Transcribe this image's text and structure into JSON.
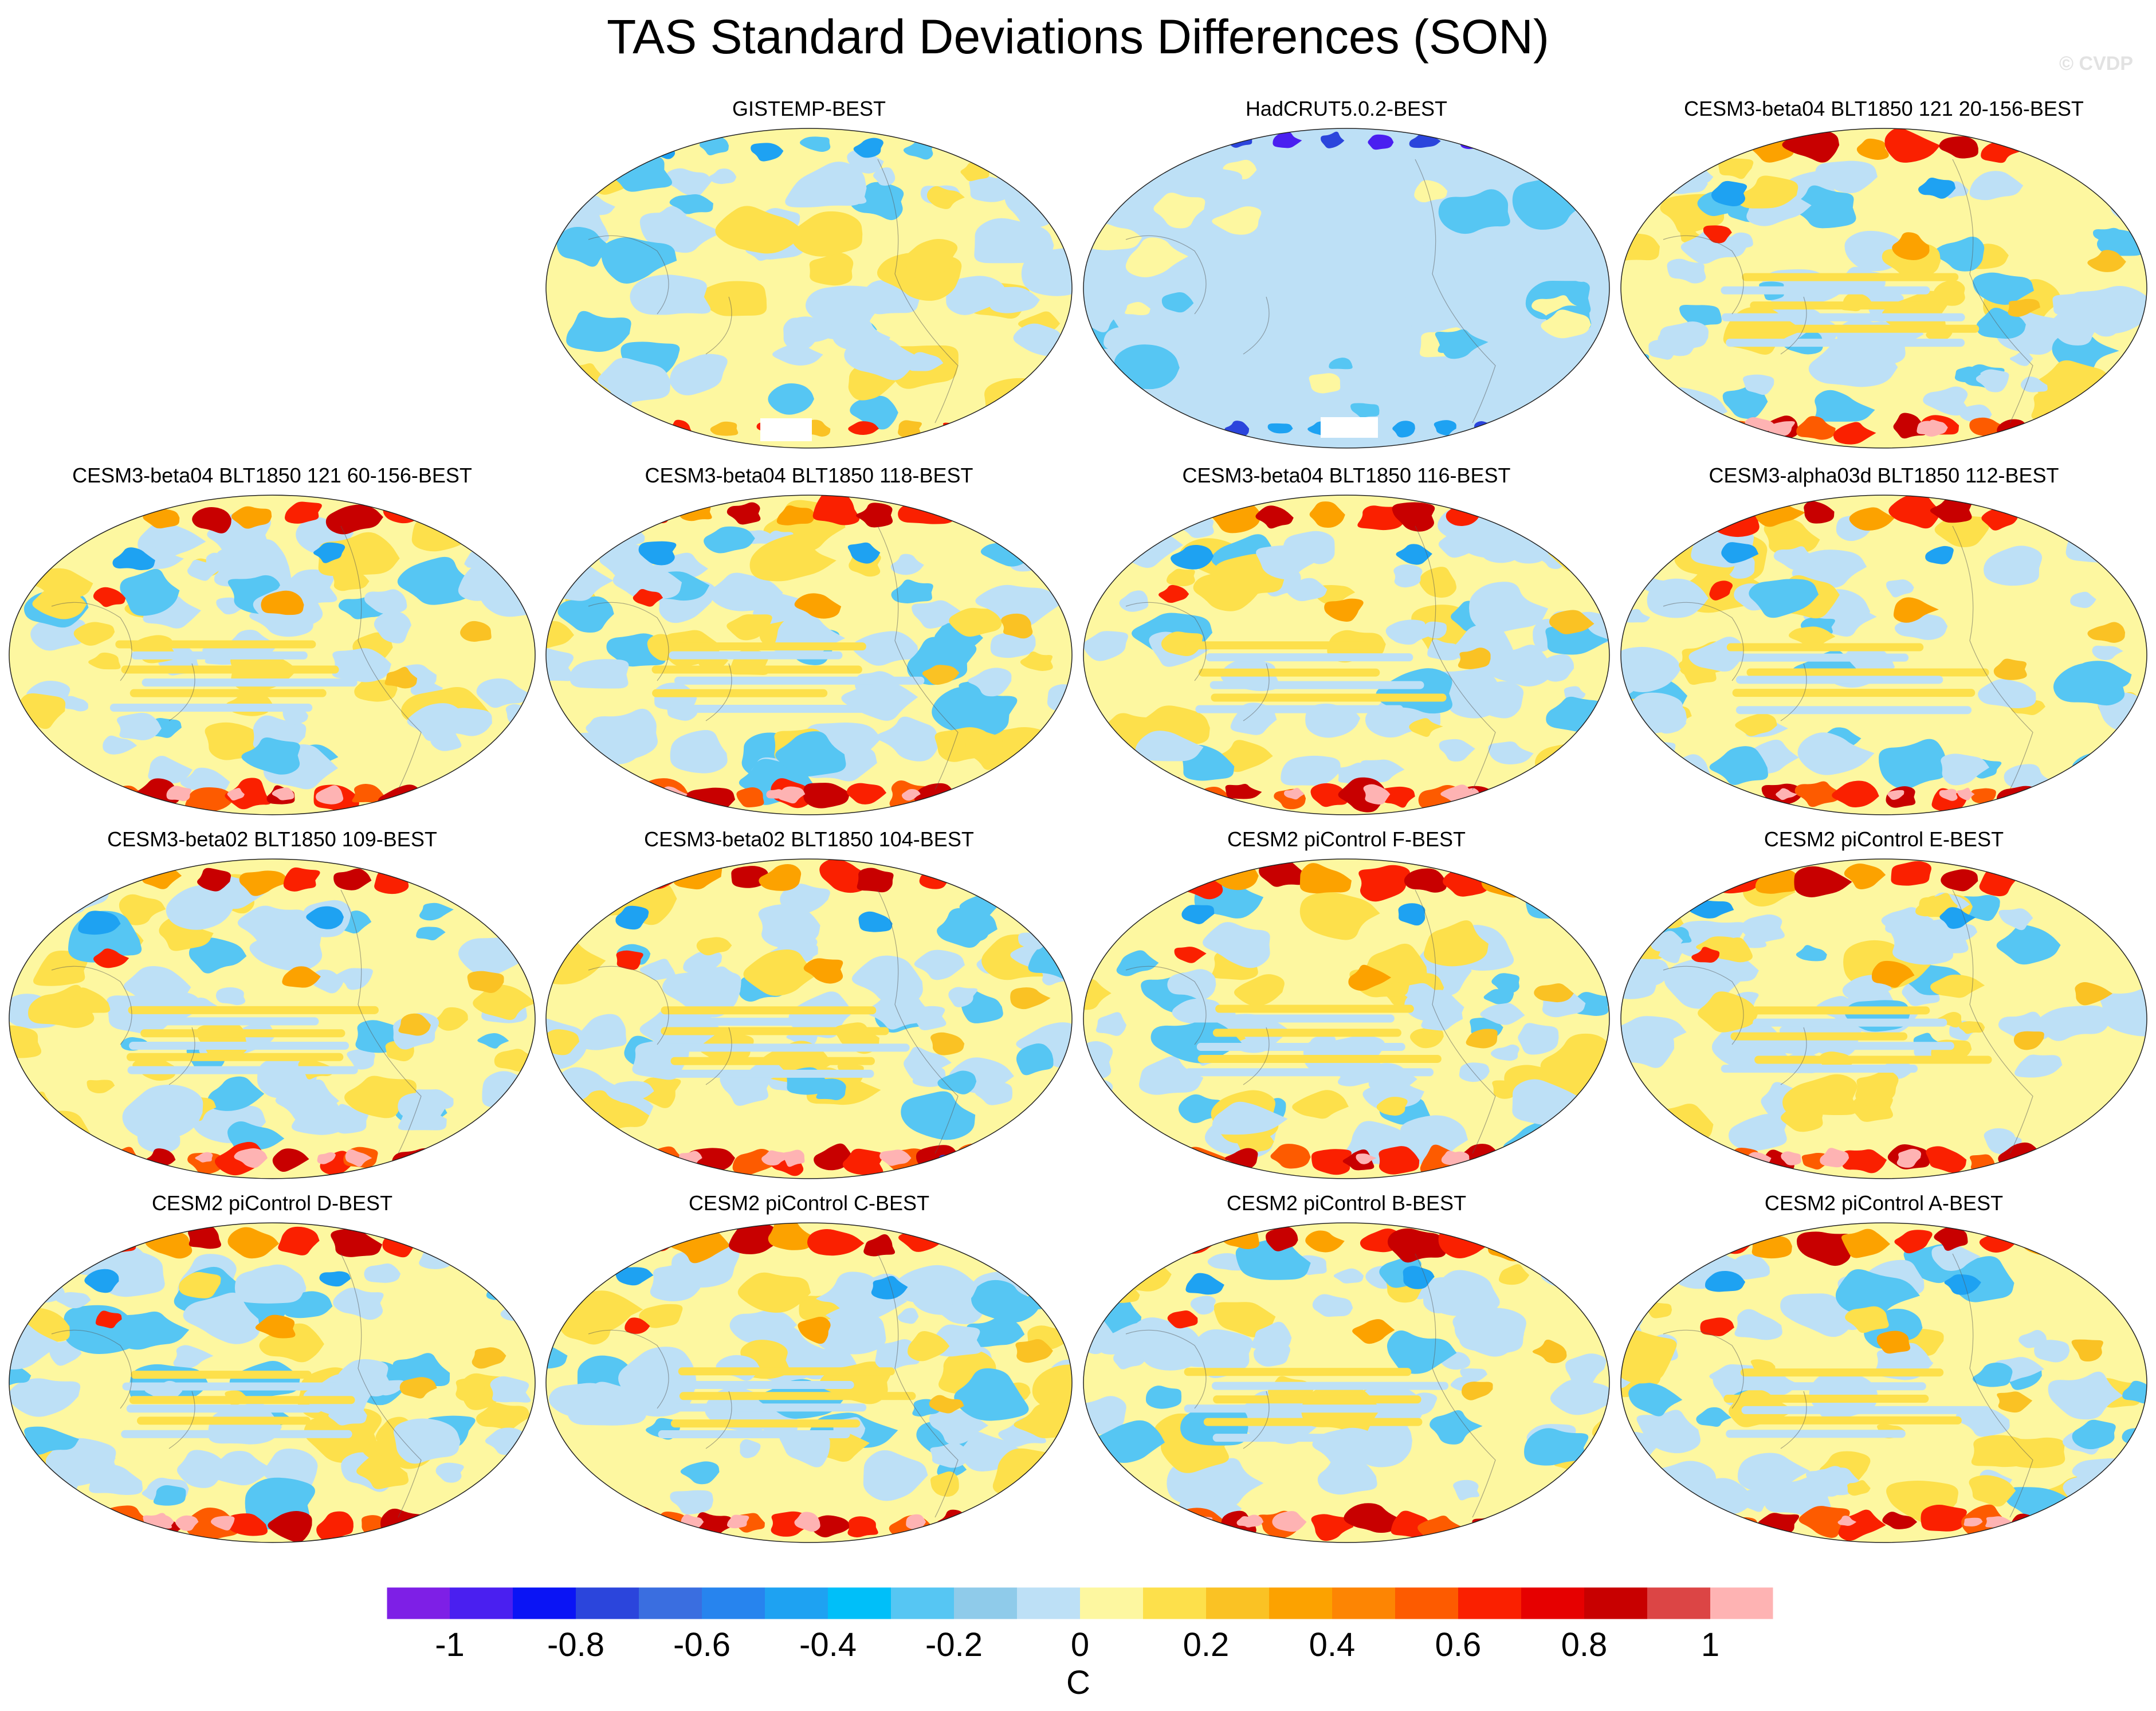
{
  "title": "TAS Standard Deviations Differences (SON)",
  "credit": "© CVDP",
  "chart_data": {
    "type": "heatmap",
    "title": "TAS Standard Deviations Differences (SON)",
    "units": "C",
    "projection": "Robinson (Pacific-centered)",
    "panels": [
      {
        "name": "GISTEMP-BEST",
        "row": 0,
        "col": 1
      },
      {
        "name": "HadCRUT5.0.2-BEST",
        "row": 0,
        "col": 2
      },
      {
        "name": "CESM3-beta04 BLT1850 121 20-156-BEST",
        "row": 0,
        "col": 3
      },
      {
        "name": "CESM3-beta04 BLT1850 121 60-156-BEST",
        "row": 1,
        "col": 0
      },
      {
        "name": "CESM3-beta04 BLT1850 118-BEST",
        "row": 1,
        "col": 1
      },
      {
        "name": "CESM3-beta04 BLT1850 116-BEST",
        "row": 1,
        "col": 2
      },
      {
        "name": "CESM3-alpha03d BLT1850 112-BEST",
        "row": 1,
        "col": 3
      },
      {
        "name": "CESM3-beta02 BLT1850 109-BEST",
        "row": 2,
        "col": 0
      },
      {
        "name": "CESM3-beta02 BLT1850 104-BEST",
        "row": 2,
        "col": 1
      },
      {
        "name": "CESM2 piControl F-BEST",
        "row": 2,
        "col": 2
      },
      {
        "name": "CESM2 piControl E-BEST",
        "row": 2,
        "col": 3
      },
      {
        "name": "CESM2 piControl D-BEST",
        "row": 3,
        "col": 0
      },
      {
        "name": "CESM2 piControl C-BEST",
        "row": 3,
        "col": 1
      },
      {
        "name": "CESM2 piControl B-BEST",
        "row": 3,
        "col": 2
      },
      {
        "name": "CESM2 piControl A-BEST",
        "row": 3,
        "col": 3
      }
    ],
    "colorbar": {
      "colors": [
        "#7e1fe6",
        "#4a1ff0",
        "#0a14f5",
        "#2b45dc",
        "#3a6ee0",
        "#2784ee",
        "#1ea2f2",
        "#00bff9",
        "#56c6f3",
        "#8fcbea",
        "#bde0f6",
        "#fdf7a0",
        "#fde04b",
        "#fac224",
        "#fca200",
        "#fd8503",
        "#fd5b00",
        "#fa2000",
        "#e60000",
        "#c80000",
        "#dc4545",
        "#feb3b3"
      ],
      "tick_labels": [
        "-1",
        "-0.8",
        "-0.6",
        "-0.4",
        "-0.2",
        "0",
        "0.2",
        "0.4",
        "0.6",
        "0.8",
        "1"
      ],
      "tick_values": [
        -1,
        -0.8,
        -0.6,
        -0.4,
        -0.2,
        0,
        0.2,
        0.4,
        0.6,
        0.8,
        1
      ],
      "range": [
        -1.1,
        1.1
      ],
      "label": "C"
    }
  }
}
